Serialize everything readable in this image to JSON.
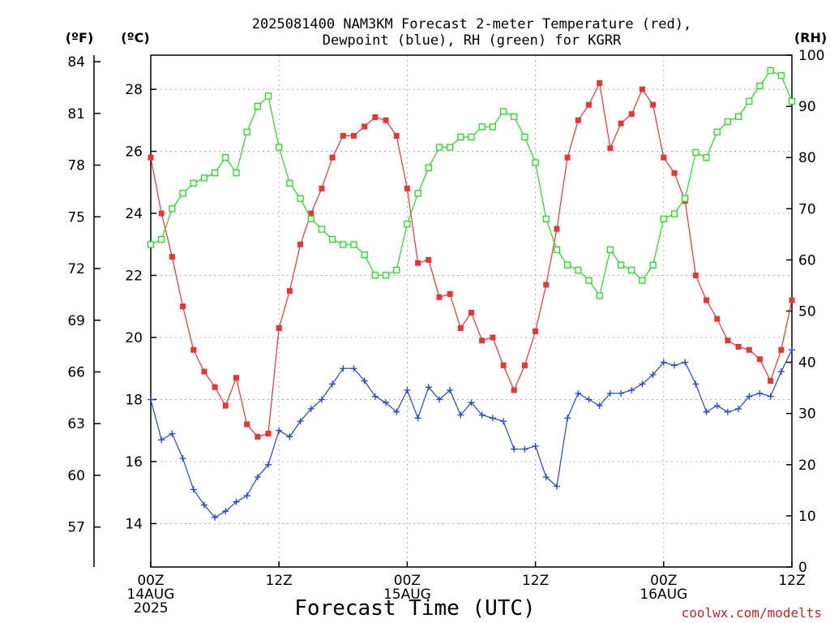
{
  "title_line1": "2025081400 NAM3KM Forecast 2-meter Temperature (red),",
  "title_line2": "Dewpoint (blue), RH (green) for KGRR",
  "units": {
    "fahrenheit": "(ºF)",
    "celsius": "(ºC)",
    "rh": "(RH)"
  },
  "x_axis_label": "Forecast Time (UTC)",
  "credit": "coolwx.com/modelts",
  "x_ticks": [
    {
      "hour": 0,
      "line1": "00Z",
      "line2": "14AUG",
      "line3": "2025"
    },
    {
      "hour": 12,
      "line1": "12Z",
      "line2": "",
      "line3": ""
    },
    {
      "hour": 24,
      "line1": "00Z",
      "line2": "15AUG",
      "line3": ""
    },
    {
      "hour": 36,
      "line1": "12Z",
      "line2": "",
      "line3": ""
    },
    {
      "hour": 48,
      "line1": "00Z",
      "line2": "16AUG",
      "line3": ""
    },
    {
      "hour": 60,
      "line1": "12Z",
      "line2": "",
      "line3": ""
    }
  ],
  "colors": {
    "temperature": "#ee3333",
    "dewpoint": "#2244dd",
    "rh": "#22dd22"
  },
  "chart_data": {
    "type": "line",
    "x_unit": "forecast hour",
    "xlim": [
      0,
      60
    ],
    "ylim_celsius": [
      12.6,
      29.1
    ],
    "ylim_rh": [
      0,
      100
    ],
    "celsius_ticks": [
      14,
      16,
      18,
      20,
      22,
      24,
      26,
      28
    ],
    "fahrenheit_ticks": [
      57,
      60,
      63,
      66,
      69,
      72,
      75,
      78,
      81,
      84
    ],
    "rh_ticks": [
      0,
      10,
      20,
      30,
      40,
      50,
      60,
      70,
      80,
      90,
      100
    ],
    "grid": true,
    "x": [
      0,
      1,
      2,
      3,
      4,
      5,
      6,
      7,
      8,
      9,
      10,
      11,
      12,
      13,
      14,
      15,
      16,
      17,
      18,
      19,
      20,
      21,
      22,
      23,
      24,
      25,
      26,
      27,
      28,
      29,
      30,
      31,
      32,
      33,
      34,
      35,
      36,
      37,
      38,
      39,
      40,
      41,
      42,
      43,
      44,
      45,
      46,
      47,
      48,
      49,
      50,
      51,
      52,
      53,
      54,
      55,
      56,
      57,
      58,
      59,
      60
    ],
    "series": [
      {
        "axis": "celsius",
        "marker": "filled-square",
        "values": [
          25.8,
          24.0,
          22.6,
          21.0,
          19.6,
          18.9,
          18.4,
          17.8,
          18.7,
          17.2,
          16.8,
          16.9,
          20.3,
          21.5,
          23.0,
          24.0,
          24.8,
          25.8,
          26.5,
          26.5,
          26.8,
          27.1,
          27.0,
          26.5,
          24.8,
          22.4,
          22.5,
          21.3,
          21.4,
          20.3,
          20.8,
          19.9,
          20.0,
          19.1,
          18.3,
          19.1,
          20.2,
          21.7,
          23.5,
          25.8,
          27.0,
          27.5,
          28.2,
          26.1,
          26.9,
          27.2,
          28.0,
          27.5,
          25.8,
          25.3,
          24.4,
          22.0,
          21.2,
          20.6,
          19.9,
          19.7,
          19.6,
          19.3,
          18.6,
          19.6,
          21.2
        ]
      },
      {
        "axis": "celsius",
        "marker": "plus",
        "values": [
          18.0,
          16.7,
          16.9,
          16.1,
          15.1,
          14.6,
          14.2,
          14.4,
          14.7,
          14.9,
          15.5,
          15.9,
          17.0,
          16.8,
          17.3,
          17.7,
          18.0,
          18.5,
          19.0,
          19.0,
          18.6,
          18.1,
          17.9,
          17.6,
          18.3,
          17.4,
          18.4,
          18.0,
          18.3,
          17.5,
          17.9,
          17.5,
          17.4,
          17.3,
          16.4,
          16.4,
          16.5,
          15.5,
          15.2,
          17.4,
          18.2,
          18.0,
          17.8,
          18.2,
          18.2,
          18.3,
          18.5,
          18.8,
          19.2,
          19.1,
          19.2,
          18.5,
          17.6,
          17.8,
          17.6,
          17.7,
          18.1,
          18.2,
          18.1,
          18.9,
          19.6
        ]
      },
      {
        "axis": "rh",
        "marker": "open-square",
        "values": [
          63,
          64,
          70,
          73,
          75,
          76,
          77,
          80,
          77,
          85,
          90,
          92,
          82,
          75,
          72,
          68,
          66,
          64,
          63,
          63,
          61,
          57,
          57,
          58,
          67,
          73,
          78,
          82,
          82,
          84,
          84,
          86,
          86,
          89,
          88,
          84,
          79,
          68,
          62,
          59,
          58,
          56,
          53,
          62,
          59,
          58,
          56,
          59,
          68,
          69,
          72,
          81,
          80,
          85,
          87,
          88,
          91,
          94,
          97,
          96,
          91
        ]
      }
    ]
  }
}
